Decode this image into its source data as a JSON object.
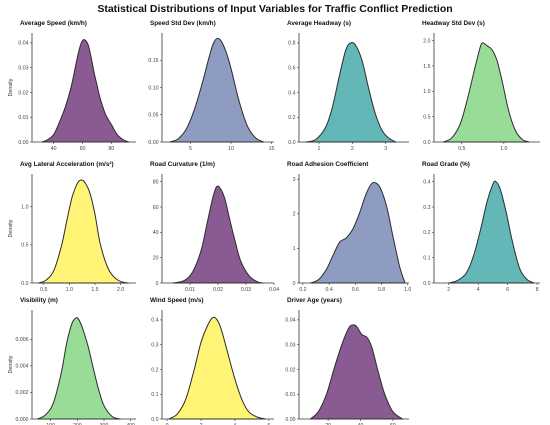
{
  "figure_title": "Statistical Distributions of Input Variables for Traffic Conflict Prediction",
  "chart_data": [
    {
      "type": "area",
      "title": "Average Speed (km/h)",
      "ylabel": "Density",
      "color": "#8a5a92",
      "xlim": [
        25,
        97
      ],
      "ylim": [
        0,
        0.044
      ],
      "xticks": [
        40,
        60,
        80
      ],
      "xtick_labels": [
        "40",
        "60",
        "80"
      ],
      "yticks": [
        0,
        0.01,
        0.02,
        0.03,
        0.04
      ],
      "ytick_labels": [
        "0.00",
        "0.01",
        "0.02",
        "0.03",
        "0.04"
      ],
      "x": [
        32,
        36,
        40,
        44,
        48,
        52,
        56,
        58,
        60,
        62,
        64,
        66,
        68,
        70,
        72,
        76,
        80,
        84,
        88,
        92
      ],
      "y": [
        0,
        0.001,
        0.003,
        0.008,
        0.014,
        0.022,
        0.033,
        0.038,
        0.041,
        0.041,
        0.039,
        0.034,
        0.028,
        0.023,
        0.018,
        0.011,
        0.007,
        0.003,
        0.001,
        0
      ]
    },
    {
      "type": "area",
      "title": "Speed Std Dev (km/h)",
      "ylabel": "",
      "color": "#8d9cc0",
      "xlim": [
        1.5,
        15.3
      ],
      "ylim": [
        0,
        0.2
      ],
      "xticks": [
        5,
        10,
        15
      ],
      "xtick_labels": [
        "5",
        "10",
        "15"
      ],
      "yticks": [
        0,
        0.05,
        0.1,
        0.15
      ],
      "ytick_labels": [
        "0.00",
        "0.05",
        "0.10",
        "0.15"
      ],
      "x": [
        2.5,
        3.5,
        4.5,
        5.5,
        6.5,
        7.2,
        7.8,
        8.3,
        8.8,
        9.4,
        10,
        11,
        12,
        13,
        14
      ],
      "y": [
        0,
        0.006,
        0.024,
        0.06,
        0.11,
        0.15,
        0.18,
        0.19,
        0.185,
        0.165,
        0.135,
        0.075,
        0.03,
        0.008,
        0
      ]
    },
    {
      "type": "area",
      "title": "Average Headway (s)",
      "ylabel": "",
      "color": "#64b7b7",
      "xlim": [
        0.4,
        3.7
      ],
      "ylim": [
        0,
        0.88
      ],
      "xticks": [
        1,
        2,
        3
      ],
      "xtick_labels": [
        "1",
        "2",
        "3"
      ],
      "yticks": [
        0,
        0.2,
        0.4,
        0.6,
        0.8
      ],
      "ytick_labels": [
        "0.0",
        "0.2",
        "0.4",
        "0.6",
        "0.8"
      ],
      "x": [
        0.6,
        0.9,
        1.2,
        1.4,
        1.6,
        1.8,
        1.95,
        2.1,
        2.3,
        2.5,
        2.7,
        2.9,
        3.1,
        3.3
      ],
      "y": [
        0,
        0.02,
        0.12,
        0.28,
        0.52,
        0.74,
        0.8,
        0.78,
        0.65,
        0.42,
        0.22,
        0.09,
        0.03,
        0
      ]
    },
    {
      "type": "area",
      "title": "Headway Std Dev (s)",
      "ylabel": "",
      "color": "#98dc98",
      "xlim": [
        0.17,
        1.43
      ],
      "ylim": [
        0,
        2.15
      ],
      "xticks": [
        0.5,
        1.0
      ],
      "xtick_labels": [
        "0.5",
        "1.0"
      ],
      "yticks": [
        0,
        0.5,
        1.0,
        1.5,
        2.0
      ],
      "ytick_labels": [
        "0.0",
        "0.5",
        "1.0",
        "1.5",
        "2.0"
      ],
      "x": [
        0.28,
        0.38,
        0.48,
        0.56,
        0.64,
        0.7,
        0.74,
        0.8,
        0.86,
        0.92,
        0.98,
        1.06,
        1.14,
        1.22,
        1.3
      ],
      "y": [
        0,
        0.08,
        0.35,
        0.8,
        1.35,
        1.75,
        1.95,
        1.9,
        1.82,
        1.6,
        1.2,
        0.6,
        0.22,
        0.05,
        0
      ]
    },
    {
      "type": "area",
      "title": "Avg Lateral Acceleration (m/s²)",
      "ylabel": "Density",
      "color": "#fff475",
      "xlim": [
        0.27,
        2.3
      ],
      "ylim": [
        0,
        1.43
      ],
      "xticks": [
        0.5,
        1.0,
        1.5,
        2.0
      ],
      "xtick_labels": [
        "0.5",
        "1.0",
        "1.5",
        "2.0"
      ],
      "yticks": [
        0,
        0.5,
        1.0
      ],
      "ytick_labels": [
        "0.0",
        "0.5",
        "1.0"
      ],
      "x": [
        0.4,
        0.55,
        0.7,
        0.85,
        0.95,
        1.05,
        1.15,
        1.22,
        1.3,
        1.4,
        1.5,
        1.6,
        1.75,
        1.9,
        2.05,
        2.15
      ],
      "y": [
        0,
        0.04,
        0.17,
        0.5,
        0.82,
        1.12,
        1.3,
        1.35,
        1.32,
        1.18,
        0.9,
        0.52,
        0.2,
        0.06,
        0.01,
        0
      ]
    },
    {
      "type": "area",
      "title": "Road Curvature (1/m)",
      "ylabel": "",
      "color": "#8a5a92",
      "xlim": [
        0.0,
        0.04
      ],
      "ylim": [
        0,
        86
      ],
      "xticks": [
        0.01,
        0.02,
        0.03,
        0.04
      ],
      "xtick_labels": [
        "0.01",
        "0.02",
        "0.03",
        "0.04"
      ],
      "yticks": [
        0,
        20,
        40,
        60,
        80
      ],
      "ytick_labels": [
        "0",
        "20",
        "40",
        "60",
        "80"
      ],
      "x": [
        0.004,
        0.008,
        0.011,
        0.014,
        0.016,
        0.018,
        0.0195,
        0.021,
        0.0225,
        0.024,
        0.026,
        0.028,
        0.031,
        0.034,
        0.036
      ],
      "y": [
        0,
        2,
        9,
        26,
        46,
        66,
        76,
        74,
        66,
        52,
        34,
        18,
        6,
        1,
        0
      ]
    },
    {
      "type": "area",
      "title": "Road Adhesion Coefficient",
      "ylabel": "",
      "color": "#8d9cc0",
      "xlim": [
        0.17,
        1.01
      ],
      "ylim": [
        0,
        3.15
      ],
      "xticks": [
        0.2,
        0.4,
        0.6,
        0.8,
        1.0
      ],
      "xtick_labels": [
        "0.2",
        "0.4",
        "0.6",
        "0.8",
        "1.0"
      ],
      "yticks": [
        0,
        1,
        2,
        3
      ],
      "ytick_labels": [
        "0",
        "1",
        "2",
        "3"
      ],
      "x": [
        0.26,
        0.32,
        0.38,
        0.43,
        0.48,
        0.53,
        0.58,
        0.63,
        0.68,
        0.72,
        0.75,
        0.79,
        0.84,
        0.89,
        0.94,
        0.98
      ],
      "y": [
        0,
        0.1,
        0.4,
        0.8,
        1.18,
        1.3,
        1.55,
        2.0,
        2.55,
        2.85,
        2.9,
        2.75,
        2.2,
        1.3,
        0.45,
        0
      ]
    },
    {
      "type": "area",
      "title": "Road Grade (%)",
      "ylabel": "",
      "color": "#64b7b7",
      "xlim": [
        1.0,
        8.2
      ],
      "ylim": [
        0,
        0.43
      ],
      "xticks": [
        2,
        4,
        6,
        8
      ],
      "xtick_labels": [
        "2",
        "4",
        "6",
        "8"
      ],
      "yticks": [
        0,
        0.1,
        0.2,
        0.3,
        0.4
      ],
      "ytick_labels": [
        "0.0",
        "0.1",
        "0.2",
        "0.3",
        "0.4"
      ],
      "x": [
        2.0,
        2.6,
        3.2,
        3.7,
        4.2,
        4.6,
        5.0,
        5.2,
        5.5,
        5.9,
        6.3,
        6.8,
        7.3,
        7.8
      ],
      "y": [
        0,
        0.01,
        0.04,
        0.11,
        0.22,
        0.32,
        0.39,
        0.4,
        0.37,
        0.28,
        0.17,
        0.06,
        0.015,
        0
      ]
    },
    {
      "type": "area",
      "title": "Visibility (m)",
      "ylabel": "Density",
      "color": "#98dc98",
      "xlim": [
        30,
        420
      ],
      "ylim": [
        0,
        0.0082
      ],
      "xticks": [
        100,
        200,
        300,
        400
      ],
      "xtick_labels": [
        "100",
        "200",
        "300",
        "400"
      ],
      "yticks": [
        0,
        0.002,
        0.004,
        0.006
      ],
      "ytick_labels": [
        "0.000",
        "0.002",
        "0.004",
        "0.006"
      ],
      "x": [
        50,
        80,
        110,
        140,
        160,
        180,
        195,
        205,
        220,
        240,
        260,
        280,
        300,
        330,
        360
      ],
      "y": [
        0,
        0.0003,
        0.0012,
        0.0035,
        0.0057,
        0.0072,
        0.0076,
        0.0075,
        0.0068,
        0.0055,
        0.0038,
        0.0022,
        0.001,
        0.0002,
        0
      ]
    },
    {
      "type": "area",
      "title": "Wind Speed (m/s)",
      "ylabel": "",
      "color": "#fff475",
      "xlim": [
        -0.3,
        6.3
      ],
      "ylim": [
        0,
        0.44
      ],
      "xticks": [
        0,
        2,
        4,
        6
      ],
      "xtick_labels": [
        "0",
        "2",
        "4",
        "6"
      ],
      "yticks": [
        0,
        0.1,
        0.2,
        0.3,
        0.4
      ],
      "ytick_labels": [
        "0.0",
        "0.1",
        "0.2",
        "0.3",
        "0.4"
      ],
      "x": [
        0.1,
        0.6,
        1.1,
        1.6,
        2.0,
        2.4,
        2.7,
        2.95,
        3.2,
        3.6,
        4.0,
        4.4,
        4.8,
        5.3,
        5.8
      ],
      "y": [
        0,
        0.02,
        0.08,
        0.2,
        0.31,
        0.38,
        0.41,
        0.4,
        0.36,
        0.26,
        0.16,
        0.08,
        0.03,
        0.008,
        0
      ]
    },
    {
      "type": "area",
      "title": "Driver Age (years)",
      "ylabel": "",
      "color": "#8a5a92",
      "xlim": [
        2,
        70
      ],
      "ylim": [
        0,
        0.044
      ],
      "xticks": [
        20,
        40,
        60
      ],
      "xtick_labels": [
        "20",
        "40",
        "60"
      ],
      "yticks": [
        0,
        0.01,
        0.02,
        0.03,
        0.04
      ],
      "ytick_labels": [
        "0.00",
        "0.01",
        "0.02",
        "0.03",
        "0.04"
      ],
      "x": [
        9,
        14,
        19,
        24,
        29,
        33,
        36,
        38,
        41,
        44,
        47,
        51,
        55,
        60,
        66
      ],
      "y": [
        0,
        0.003,
        0.01,
        0.021,
        0.031,
        0.037,
        0.038,
        0.037,
        0.034,
        0.033,
        0.029,
        0.019,
        0.01,
        0.003,
        0
      ]
    }
  ]
}
